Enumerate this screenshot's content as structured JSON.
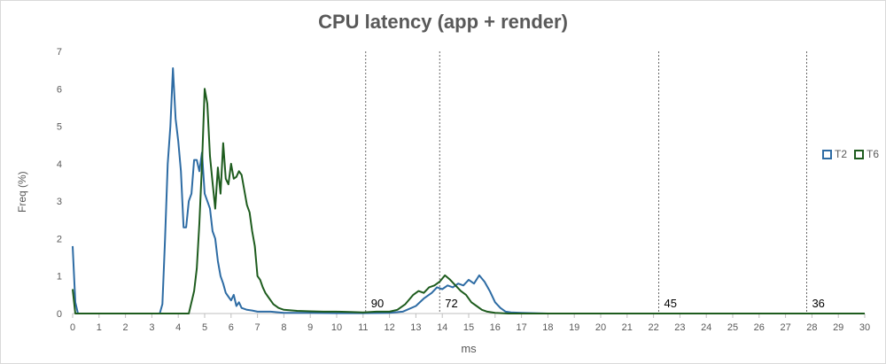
{
  "chart_data": {
    "type": "line",
    "title": "CPU latency (app + render)",
    "xlabel": "ms",
    "ylabel": "Freq (%)",
    "xlim": [
      0,
      30
    ],
    "ylim": [
      0,
      7
    ],
    "x_ticks": [
      0,
      1,
      2,
      3,
      4,
      5,
      6,
      7,
      8,
      9,
      10,
      11,
      12,
      13,
      14,
      15,
      16,
      17,
      18,
      19,
      20,
      21,
      22,
      23,
      24,
      25,
      26,
      27,
      28,
      29,
      30
    ],
    "y_ticks": [
      0,
      1,
      2,
      3,
      4,
      5,
      6,
      7
    ],
    "grid": false,
    "legend_position": "right",
    "series": [
      {
        "name": "T2",
        "color": "#2e6ca4",
        "points": [
          [
            0,
            1.8
          ],
          [
            0.1,
            0.3
          ],
          [
            0.2,
            0
          ],
          [
            3.3,
            0
          ],
          [
            3.4,
            0.25
          ],
          [
            3.5,
            2.0
          ],
          [
            3.6,
            4.0
          ],
          [
            3.7,
            5.0
          ],
          [
            3.8,
            6.55
          ],
          [
            3.9,
            5.2
          ],
          [
            4.0,
            4.6
          ],
          [
            4.1,
            3.8
          ],
          [
            4.2,
            2.3
          ],
          [
            4.3,
            2.3
          ],
          [
            4.4,
            3.0
          ],
          [
            4.5,
            3.2
          ],
          [
            4.6,
            4.1
          ],
          [
            4.7,
            4.1
          ],
          [
            4.8,
            3.8
          ],
          [
            4.9,
            4.3
          ],
          [
            5.0,
            3.2
          ],
          [
            5.1,
            3.0
          ],
          [
            5.2,
            2.8
          ],
          [
            5.3,
            2.2
          ],
          [
            5.4,
            2.0
          ],
          [
            5.5,
            1.4
          ],
          [
            5.6,
            1.0
          ],
          [
            5.7,
            0.8
          ],
          [
            5.8,
            0.55
          ],
          [
            5.9,
            0.45
          ],
          [
            6.0,
            0.35
          ],
          [
            6.1,
            0.5
          ],
          [
            6.2,
            0.2
          ],
          [
            6.3,
            0.3
          ],
          [
            6.4,
            0.15
          ],
          [
            6.6,
            0.1
          ],
          [
            6.8,
            0.08
          ],
          [
            7.0,
            0.05
          ],
          [
            7.5,
            0.05
          ],
          [
            8.0,
            0.02
          ],
          [
            9.0,
            0.02
          ],
          [
            10.0,
            0.01
          ],
          [
            11.0,
            0.01
          ],
          [
            12.0,
            0.02
          ],
          [
            12.5,
            0.05
          ],
          [
            13.0,
            0.2
          ],
          [
            13.3,
            0.4
          ],
          [
            13.6,
            0.55
          ],
          [
            13.8,
            0.7
          ],
          [
            14.0,
            0.65
          ],
          [
            14.2,
            0.75
          ],
          [
            14.4,
            0.7
          ],
          [
            14.6,
            0.8
          ],
          [
            14.8,
            0.75
          ],
          [
            15.0,
            0.9
          ],
          [
            15.2,
            0.8
          ],
          [
            15.4,
            1.02
          ],
          [
            15.6,
            0.85
          ],
          [
            15.8,
            0.6
          ],
          [
            16.0,
            0.3
          ],
          [
            16.2,
            0.15
          ],
          [
            16.4,
            0.05
          ],
          [
            16.6,
            0.03
          ],
          [
            17.0,
            0.02
          ],
          [
            17.5,
            0.01
          ],
          [
            18.0,
            0
          ],
          [
            30,
            0
          ]
        ]
      },
      {
        "name": "T6",
        "color": "#1e5c1e",
        "points": [
          [
            0,
            0.65
          ],
          [
            0.1,
            0
          ],
          [
            4.4,
            0
          ],
          [
            4.5,
            0.3
          ],
          [
            4.6,
            0.6
          ],
          [
            4.7,
            1.2
          ],
          [
            4.8,
            2.4
          ],
          [
            4.9,
            4.0
          ],
          [
            5.0,
            6.0
          ],
          [
            5.1,
            5.6
          ],
          [
            5.2,
            4.2
          ],
          [
            5.3,
            3.5
          ],
          [
            5.4,
            2.8
          ],
          [
            5.5,
            3.9
          ],
          [
            5.6,
            3.2
          ],
          [
            5.7,
            4.55
          ],
          [
            5.8,
            3.6
          ],
          [
            5.9,
            3.45
          ],
          [
            6.0,
            4.0
          ],
          [
            6.1,
            3.6
          ],
          [
            6.2,
            3.65
          ],
          [
            6.3,
            3.8
          ],
          [
            6.4,
            3.7
          ],
          [
            6.5,
            3.3
          ],
          [
            6.6,
            2.9
          ],
          [
            6.7,
            2.7
          ],
          [
            6.8,
            2.2
          ],
          [
            6.9,
            1.8
          ],
          [
            7.0,
            1.0
          ],
          [
            7.1,
            0.9
          ],
          [
            7.2,
            0.7
          ],
          [
            7.3,
            0.55
          ],
          [
            7.4,
            0.45
          ],
          [
            7.5,
            0.35
          ],
          [
            7.6,
            0.25
          ],
          [
            7.8,
            0.15
          ],
          [
            8.0,
            0.1
          ],
          [
            8.5,
            0.07
          ],
          [
            9.0,
            0.06
          ],
          [
            9.5,
            0.05
          ],
          [
            10.0,
            0.05
          ],
          [
            10.5,
            0.04
          ],
          [
            11.0,
            0.03
          ],
          [
            11.5,
            0.05
          ],
          [
            12.0,
            0.05
          ],
          [
            12.3,
            0.1
          ],
          [
            12.6,
            0.25
          ],
          [
            12.9,
            0.5
          ],
          [
            13.1,
            0.6
          ],
          [
            13.3,
            0.55
          ],
          [
            13.5,
            0.7
          ],
          [
            13.7,
            0.75
          ],
          [
            13.9,
            0.85
          ],
          [
            14.1,
            1.02
          ],
          [
            14.3,
            0.9
          ],
          [
            14.5,
            0.75
          ],
          [
            14.7,
            0.6
          ],
          [
            14.9,
            0.5
          ],
          [
            15.1,
            0.3
          ],
          [
            15.3,
            0.2
          ],
          [
            15.5,
            0.1
          ],
          [
            15.7,
            0.05
          ],
          [
            16.0,
            0.02
          ],
          [
            16.5,
            0
          ],
          [
            30,
            0
          ]
        ]
      }
    ],
    "reference_lines": [
      {
        "x": 11.1,
        "label": "90"
      },
      {
        "x": 13.9,
        "label": "72"
      },
      {
        "x": 22.2,
        "label": "45"
      },
      {
        "x": 27.8,
        "label": "36"
      }
    ]
  }
}
